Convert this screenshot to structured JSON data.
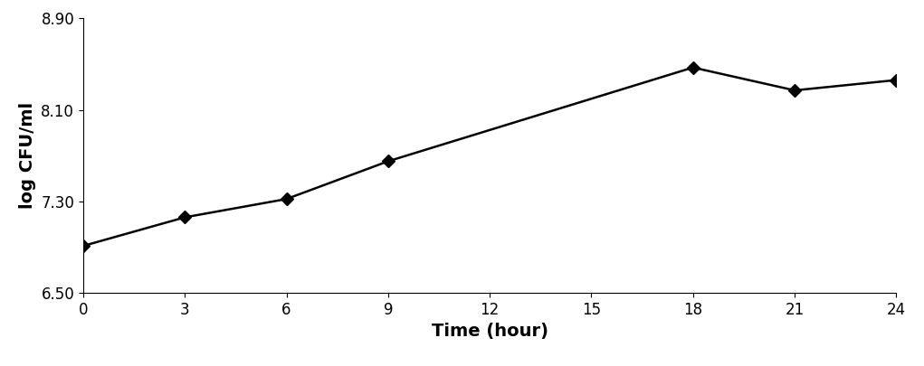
{
  "chart_data": {
    "type": "line",
    "x_label": "Time (hour)",
    "y_label": "log CFU/ml",
    "x": [
      0,
      3,
      6,
      9,
      18,
      21,
      24
    ],
    "values": [
      6.91,
      7.16,
      7.32,
      7.65,
      8.47,
      8.27,
      8.36
    ],
    "color": "#000000",
    "marker": "D",
    "line_style": "solid",
    "xlim": [
      0,
      24
    ],
    "xticks": [
      0,
      3,
      6,
      9,
      12,
      15,
      18,
      21,
      24
    ],
    "ylim": [
      6.5,
      8.9
    ],
    "yticks": [
      {
        "value": 6.5,
        "label": "6.50"
      },
      {
        "value": 7.3,
        "label": "7.30"
      },
      {
        "value": 8.1,
        "label": "8.10"
      },
      {
        "value": 8.9,
        "label": "8.90"
      }
    ],
    "grid": false
  }
}
